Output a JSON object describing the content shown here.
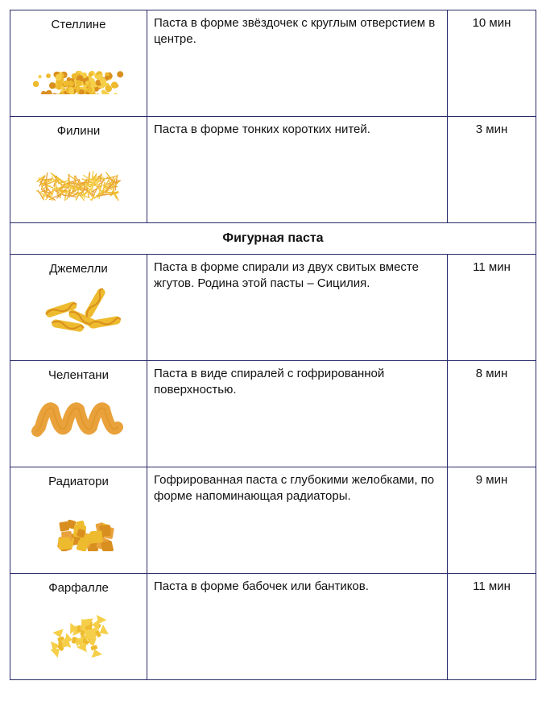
{
  "section_header": "Фигурная паста",
  "colors": {
    "border": "#2a2a6a",
    "text": "#111111",
    "pasta_light": "#f6cf4a",
    "pasta_mid": "#eebb2e",
    "pasta_dark": "#d98f1f",
    "pasta_orange": "#e9a23b"
  },
  "rows_top": [
    {
      "name": "Стеллине",
      "desc": "Паста в форме звёздочек с круглым отверстием в центре.",
      "time": "10 мин",
      "img": "pile-stars"
    },
    {
      "name": "Филини",
      "desc": "Паста в форме тонких коротких нитей.",
      "time": "3 мин",
      "img": "pile-threads"
    }
  ],
  "rows_section": [
    {
      "name": "Джемелли",
      "desc": "Паста в форме спирали из двух свитых вместе жгутов. Родина этой пасты – Сицилия.",
      "time": "11 мин",
      "img": "twists"
    },
    {
      "name": "Челентани",
      "desc": "Паста в виде спиралей с гофрированной поверхностью.",
      "time": "8 мин",
      "img": "corkscrew"
    },
    {
      "name": "Радиатори",
      "desc": "Гофрированная паста с глубокими желобками, по форме напоминающая радиаторы.",
      "time": "9 мин",
      "img": "cubes"
    },
    {
      "name": "Фарфалле",
      "desc": "Паста в форме бабочек или бантиков.",
      "time": "11 мин",
      "img": "bows"
    }
  ]
}
